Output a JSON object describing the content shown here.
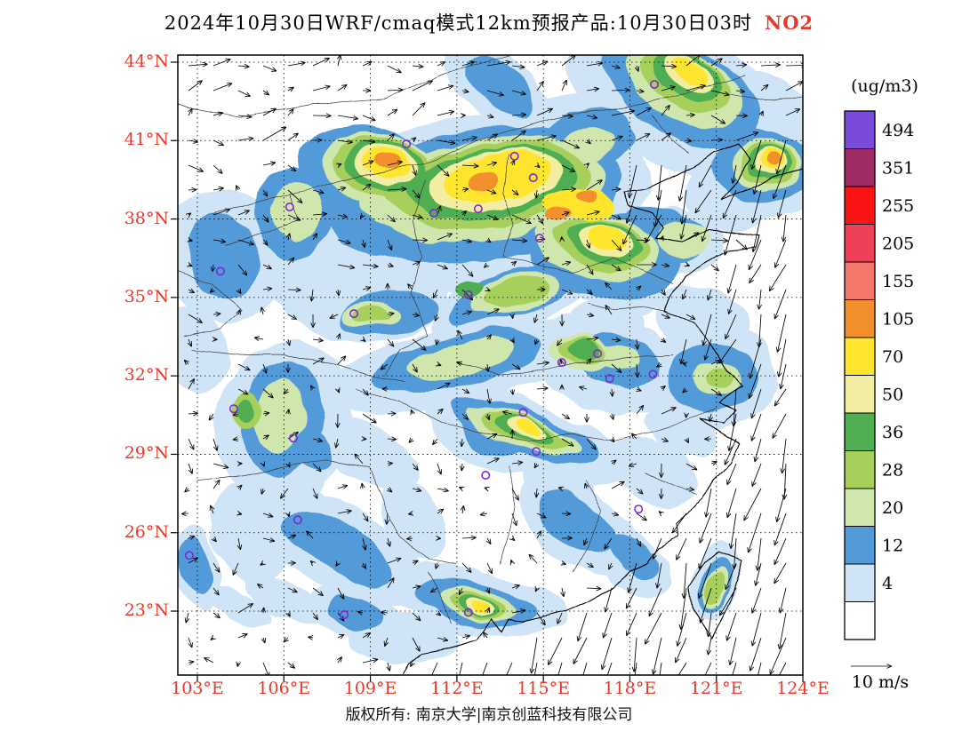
{
  "title": {
    "main": "2024年10月30日WRF/cmaq模式12km预报产品:10月30日03时",
    "species": "NO2"
  },
  "footer": {
    "copyright": "版权所有: 南京大学|南京创蓝科技有限公司"
  },
  "axes": {
    "label_color": "#e8392b",
    "lat_labels": [
      "44°N",
      "41°N",
      "38°N",
      "35°N",
      "32°N",
      "29°N",
      "26°N",
      "23°N"
    ],
    "lat_values": [
      44,
      41,
      38,
      35,
      32,
      29,
      26,
      23
    ],
    "lon_labels": [
      "103°E",
      "106°E",
      "109°E",
      "112°E",
      "115°E",
      "118°E",
      "121°E",
      "124°E"
    ],
    "lon_values": [
      103,
      106,
      109,
      112,
      115,
      118,
      121,
      124
    ]
  },
  "colorbar": {
    "unit": "(ug/m3)",
    "cells": [
      {
        "label": "494",
        "color": "#7a4bdb"
      },
      {
        "label": "351",
        "color": "#9e2b63"
      },
      {
        "label": "255",
        "color": "#fa1414"
      },
      {
        "label": "205",
        "color": "#ef4058"
      },
      {
        "label": "155",
        "color": "#f3786b"
      },
      {
        "label": "105",
        "color": "#f2902e"
      },
      {
        "label": "70",
        "color": "#ffe52e"
      },
      {
        "label": "50",
        "color": "#f1eda1"
      },
      {
        "label": "36",
        "color": "#4fae51"
      },
      {
        "label": "28",
        "color": "#a6cf5c"
      },
      {
        "label": "20",
        "color": "#cfe7ad"
      },
      {
        "label": "12",
        "color": "#539bd8"
      },
      {
        "label": "4",
        "color": "#cfe4f7"
      },
      {
        "label": "",
        "color": "#ffffff"
      }
    ]
  },
  "wind": {
    "reference_label": "10 m/s",
    "reference_speed": 10
  },
  "chart_data": {
    "type": "heatmap",
    "title": "2024年10月30日WRF/cmaq模式12km预报产品:10月30日03时 NO2",
    "unit": "ug/m3",
    "lon_range": [
      102.3,
      124.0
    ],
    "lat_range": [
      20.6,
      44.3
    ],
    "levels": [
      4,
      12,
      20,
      28,
      36,
      50,
      70,
      105,
      155,
      205,
      255,
      351,
      494
    ],
    "level_colors": [
      "#cfe4f7",
      "#539bd8",
      "#cfe7ad",
      "#a6cf5c",
      "#4fae51",
      "#f1eda1",
      "#ffe52e",
      "#f2902e"
    ],
    "station_color": "#8125d6",
    "overlays": [
      "wind-vectors",
      "station-markers",
      "province-boundaries",
      "coastline"
    ],
    "blobs": [
      [
        112.3,
        38.6,
        6.5,
        3.3,
        -8,
        1
      ],
      [
        108.2,
        36.4,
        3.6,
        3.0,
        20,
        1
      ],
      [
        104.0,
        36.6,
        2.2,
        2.6,
        -30,
        1
      ],
      [
        119.6,
        42.6,
        4.2,
        2.6,
        28,
        1
      ],
      [
        113.5,
        43.0,
        2.2,
        1.2,
        40,
        1
      ],
      [
        116.0,
        40.9,
        2.8,
        1.8,
        -20,
        1
      ],
      [
        122.6,
        40.0,
        2.4,
        2.0,
        0,
        1
      ],
      [
        121.5,
        38.9,
        1.6,
        1.3,
        0,
        1
      ],
      [
        122.8,
        42.0,
        1.8,
        1.4,
        30,
        1
      ],
      [
        120.5,
        34.2,
        1.6,
        1.2,
        20,
        1
      ],
      [
        117.2,
        34.2,
        1.3,
        0.8,
        0,
        1
      ],
      [
        117.5,
        35.6,
        1.8,
        1.1,
        15,
        1
      ],
      [
        120.7,
        31.9,
        2.4,
        2.0,
        0,
        1
      ],
      [
        117.3,
        32.5,
        2.6,
        1.9,
        15,
        1
      ],
      [
        112.0,
        32.4,
        4.6,
        1.5,
        -12,
        1
      ],
      [
        113.9,
        35.0,
        3.0,
        1.3,
        -20,
        1
      ],
      [
        106.0,
        30.2,
        2.3,
        3.2,
        10,
        1
      ],
      [
        114.5,
        29.7,
        3.8,
        1.3,
        18,
        1
      ],
      [
        113.0,
        29.7,
        2.0,
        1.2,
        25,
        1
      ],
      [
        109.0,
        29.0,
        1.9,
        1.1,
        30,
        1
      ],
      [
        107.9,
        25.4,
        3.4,
        1.7,
        28,
        1
      ],
      [
        106.6,
        26.8,
        1.6,
        1.0,
        30,
        1
      ],
      [
        112.6,
        23.4,
        3.2,
        1.3,
        12,
        1
      ],
      [
        116.2,
        26.3,
        2.4,
        1.5,
        40,
        1
      ],
      [
        115.6,
        27.8,
        1.4,
        0.9,
        30,
        1
      ],
      [
        118.9,
        28.3,
        1.7,
        1.1,
        35,
        1
      ],
      [
        117.8,
        25.0,
        1.8,
        1.0,
        40,
        1
      ],
      [
        110.5,
        26.5,
        1.5,
        1.0,
        60,
        1
      ],
      [
        104.8,
        26.0,
        1.3,
        2.0,
        -20,
        1
      ],
      [
        103.0,
        24.6,
        0.8,
        1.6,
        -15,
        1
      ],
      [
        108.4,
        22.9,
        1.7,
        0.9,
        15,
        1
      ],
      [
        110.2,
        21.9,
        2.0,
        0.9,
        0,
        1
      ],
      [
        121.0,
        24.2,
        0.9,
        1.6,
        10,
        1
      ],
      [
        102.9,
        33.0,
        1.1,
        1.7,
        -20,
        1
      ],
      [
        119.5,
        37.1,
        1.8,
        1.2,
        0,
        1
      ],
      [
        106.0,
        23.5,
        1.5,
        0.6,
        25,
        1
      ],
      [
        104.5,
        23.2,
        1.2,
        0.5,
        20,
        1
      ],
      [
        119.8,
        29.9,
        1.3,
        0.9,
        30,
        1
      ],
      [
        112.6,
        38.9,
        5.2,
        2.5,
        -8,
        2
      ],
      [
        109.0,
        39.8,
        2.5,
        1.8,
        15,
        2
      ],
      [
        106.3,
        38.3,
        1.3,
        1.7,
        -15,
        2
      ],
      [
        119.7,
        42.9,
        3.0,
        1.7,
        28,
        2
      ],
      [
        113.6,
        43.1,
        1.4,
        0.8,
        40,
        2
      ],
      [
        116.5,
        40.9,
        1.7,
        1.2,
        -15,
        2
      ],
      [
        122.6,
        40.0,
        1.7,
        1.4,
        0,
        2
      ],
      [
        117.2,
        36.6,
        2.8,
        1.6,
        8,
        2
      ],
      [
        119.3,
        37.2,
        1.4,
        0.9,
        0,
        2
      ],
      [
        113.9,
        35.1,
        2.3,
        0.9,
        -18,
        2
      ],
      [
        112.0,
        32.5,
        3.0,
        1.0,
        -12,
        2
      ],
      [
        105.9,
        30.4,
        1.4,
        2.2,
        8,
        2
      ],
      [
        106.6,
        29.4,
        1.2,
        0.7,
        35,
        2
      ],
      [
        114.4,
        29.8,
        2.8,
        0.9,
        18,
        2
      ],
      [
        113.2,
        29.8,
        1.2,
        0.8,
        25,
        2
      ],
      [
        107.9,
        25.4,
        2.2,
        1.0,
        28,
        2
      ],
      [
        112.6,
        23.3,
        2.1,
        0.9,
        12,
        2
      ],
      [
        116.2,
        26.4,
        1.5,
        0.9,
        40,
        2
      ],
      [
        118.0,
        25.0,
        1.0,
        0.6,
        40,
        2
      ],
      [
        120.8,
        31.9,
        1.6,
        1.3,
        0,
        2
      ],
      [
        117.5,
        32.6,
        1.5,
        1.0,
        10,
        2
      ],
      [
        103.9,
        36.6,
        1.2,
        1.7,
        -25,
        2
      ],
      [
        103.0,
        24.7,
        0.5,
        1.1,
        -15,
        2
      ],
      [
        108.4,
        22.9,
        1.0,
        0.6,
        15,
        2
      ],
      [
        109.6,
        34.4,
        1.7,
        0.8,
        -10,
        2
      ],
      [
        118.8,
        37.3,
        1.5,
        1.0,
        0,
        2
      ],
      [
        121.0,
        24.1,
        0.6,
        1.2,
        10,
        2
      ],
      [
        112.9,
        39.1,
        4.3,
        1.9,
        -8,
        3
      ],
      [
        109.3,
        39.9,
        2.0,
        1.5,
        12,
        3
      ],
      [
        116.9,
        36.9,
        2.2,
        1.2,
        8,
        3
      ],
      [
        119.8,
        43.1,
        2.2,
        1.3,
        26,
        3
      ],
      [
        114.0,
        35.1,
        1.6,
        0.75,
        -18,
        3
      ],
      [
        112.1,
        32.6,
        1.8,
        0.65,
        -12,
        3
      ],
      [
        114.3,
        29.85,
        2.1,
        0.65,
        18,
        3
      ],
      [
        105.85,
        30.5,
        0.85,
        1.5,
        8,
        3
      ],
      [
        122.7,
        40.1,
        1.2,
        1.0,
        0,
        3
      ],
      [
        116.3,
        32.9,
        1.1,
        0.75,
        10,
        3
      ],
      [
        109.0,
        34.35,
        1.0,
        0.45,
        -5,
        3
      ],
      [
        112.7,
        23.25,
        1.4,
        0.65,
        12,
        3
      ],
      [
        120.9,
        31.9,
        0.85,
        0.65,
        0,
        3
      ],
      [
        117.6,
        32.7,
        0.8,
        0.5,
        10,
        3
      ],
      [
        121.0,
        24.0,
        0.45,
        0.95,
        10,
        3
      ],
      [
        106.4,
        38.3,
        0.85,
        1.1,
        -15,
        3
      ],
      [
        119.9,
        37.2,
        0.9,
        0.6,
        0,
        3
      ],
      [
        116.6,
        40.8,
        1.0,
        0.7,
        -15,
        3
      ],
      [
        113.1,
        39.3,
        3.6,
        1.5,
        -8,
        4
      ],
      [
        109.4,
        40.0,
        1.7,
        1.25,
        12,
        4
      ],
      [
        117.0,
        37.0,
        1.7,
        0.95,
        8,
        4
      ],
      [
        119.9,
        43.3,
        1.7,
        1.0,
        26,
        4
      ],
      [
        114.1,
        35.15,
        1.2,
        0.55,
        -18,
        4
      ],
      [
        114.35,
        29.9,
        1.6,
        0.5,
        18,
        4
      ],
      [
        116.35,
        32.95,
        0.85,
        0.55,
        10,
        4
      ],
      [
        112.75,
        23.2,
        1.05,
        0.48,
        12,
        4
      ],
      [
        122.75,
        40.15,
        0.95,
        0.8,
        0,
        4
      ],
      [
        104.7,
        30.7,
        0.5,
        0.8,
        10,
        4
      ],
      [
        109.1,
        34.35,
        0.6,
        0.3,
        -5,
        4
      ],
      [
        121.0,
        31.9,
        0.5,
        0.4,
        0,
        4
      ],
      [
        120.95,
        23.95,
        0.35,
        0.75,
        10,
        4
      ],
      [
        113.2,
        39.4,
        3.0,
        1.2,
        -8,
        5
      ],
      [
        109.5,
        40.05,
        1.4,
        1.05,
        12,
        5
      ],
      [
        117.1,
        37.1,
        1.3,
        0.75,
        8,
        5
      ],
      [
        120.0,
        43.4,
        1.3,
        0.8,
        26,
        5
      ],
      [
        114.35,
        29.92,
        1.1,
        0.4,
        18,
        5
      ],
      [
        116.4,
        33.0,
        0.6,
        0.42,
        10,
        5
      ],
      [
        112.8,
        23.18,
        0.75,
        0.36,
        12,
        5
      ],
      [
        122.8,
        40.2,
        0.75,
        0.65,
        0,
        5
      ],
      [
        104.7,
        30.7,
        0.3,
        0.5,
        10,
        5
      ],
      [
        112.4,
        35.3,
        0.5,
        0.3,
        0,
        5
      ],
      [
        113.3,
        39.5,
        2.4,
        1.0,
        -8,
        6
      ],
      [
        109.55,
        40.1,
        1.1,
        0.85,
        12,
        6
      ],
      [
        117.15,
        37.2,
        0.95,
        0.55,
        8,
        6
      ],
      [
        120.05,
        43.45,
        0.95,
        0.58,
        26,
        6
      ],
      [
        114.4,
        29.95,
        0.75,
        0.32,
        18,
        6
      ],
      [
        112.85,
        23.16,
        0.5,
        0.28,
        12,
        6
      ],
      [
        122.85,
        40.25,
        0.55,
        0.5,
        0,
        6
      ],
      [
        113.4,
        39.6,
        1.9,
        0.8,
        -8,
        7
      ],
      [
        116.3,
        38.6,
        1.15,
        0.65,
        10,
        7
      ],
      [
        109.6,
        40.15,
        0.85,
        0.65,
        12,
        7
      ],
      [
        117.2,
        37.3,
        0.65,
        0.42,
        8,
        7
      ],
      [
        120.1,
        43.5,
        0.65,
        0.42,
        26,
        7
      ],
      [
        122.9,
        40.3,
        0.42,
        0.38,
        0,
        7
      ],
      [
        114.45,
        29.97,
        0.48,
        0.22,
        18,
        7
      ],
      [
        112.9,
        23.15,
        0.3,
        0.2,
        12,
        7
      ],
      [
        109.65,
        40.2,
        0.5,
        0.38,
        12,
        8
      ],
      [
        112.9,
        39.45,
        0.48,
        0.33,
        -8,
        8
      ],
      [
        115.6,
        38.2,
        0.38,
        0.28,
        0,
        8
      ],
      [
        116.5,
        38.9,
        0.33,
        0.28,
        0,
        8
      ],
      [
        122.95,
        40.3,
        0.28,
        0.24,
        0,
        8
      ]
    ],
    "stations": [
      [
        118.85,
        43.15
      ],
      [
        110.25,
        40.87
      ],
      [
        114.0,
        40.4
      ],
      [
        114.65,
        39.58
      ],
      [
        106.2,
        38.46
      ],
      [
        111.2,
        38.22
      ],
      [
        112.74,
        38.39
      ],
      [
        114.87,
        37.27
      ],
      [
        103.8,
        36.0
      ],
      [
        112.4,
        35.1
      ],
      [
        108.43,
        34.38
      ],
      [
        115.64,
        32.51
      ],
      [
        116.88,
        32.85
      ],
      [
        118.8,
        32.06
      ],
      [
        117.3,
        31.9
      ],
      [
        104.26,
        30.74
      ],
      [
        114.3,
        30.6
      ],
      [
        106.33,
        29.62
      ],
      [
        114.75,
        29.11
      ],
      [
        113.0,
        28.2
      ],
      [
        118.3,
        26.9
      ],
      [
        106.48,
        26.49
      ],
      [
        102.72,
        25.13
      ],
      [
        108.09,
        22.86
      ],
      [
        112.4,
        22.95
      ]
    ]
  }
}
